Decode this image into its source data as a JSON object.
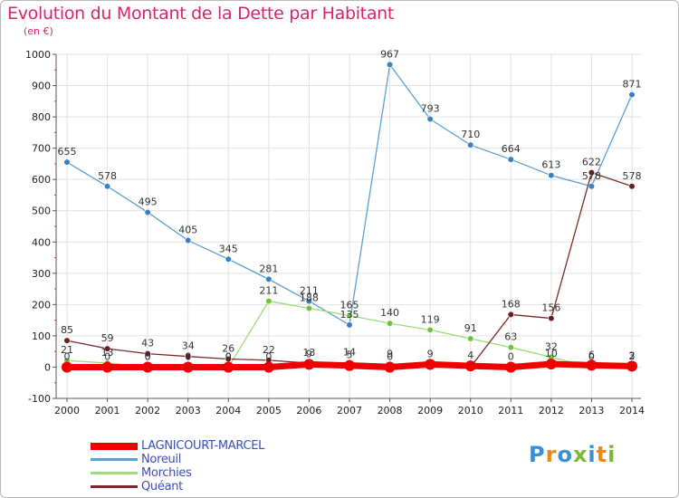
{
  "title": "Evolution du Montant de la Dette par Habitant",
  "unit_label": "(en €)",
  "logo": {
    "text": "Proxiti"
  },
  "chart_data": {
    "type": "line",
    "title": "Evolution du Montant de la Dette par Habitant",
    "subtitle": "(en €)",
    "xlabel": "",
    "ylabel": "",
    "x": [
      2000,
      2001,
      2002,
      2003,
      2004,
      2005,
      2006,
      2007,
      2008,
      2009,
      2010,
      2011,
      2012,
      2013,
      2014
    ],
    "ylim": [
      -100,
      1000
    ],
    "yticks": [
      -100,
      0,
      100,
      200,
      300,
      400,
      500,
      600,
      700,
      800,
      900,
      1000
    ],
    "grid": true,
    "legend_position": "bottom-left",
    "series": [
      {
        "name": "LAGNICOURT-MARCEL",
        "color": "#ee0000",
        "marker": "#ee0000",
        "values": [
          0,
          0,
          0,
          0,
          0,
          0,
          9,
          5,
          0,
          9,
          4,
          0,
          10,
          6,
          3
        ],
        "labels": [
          "0",
          "0",
          "0",
          "0",
          "0",
          "0",
          "9",
          "5",
          "0",
          "9",
          "4",
          "0",
          "10",
          "6",
          "3"
        ]
      },
      {
        "name": "Noreuil",
        "color": "#5ba0d5",
        "marker": "#3a7fc0",
        "values": [
          655,
          578,
          495,
          405,
          345,
          281,
          211,
          135,
          967,
          793,
          710,
          664,
          613,
          578,
          871
        ],
        "labels": [
          "655",
          "578",
          "495",
          "405",
          "345",
          "281",
          "211",
          "135",
          "967",
          "793",
          "710",
          "664",
          "613",
          "578",
          "871"
        ]
      },
      {
        "name": "Morchies",
        "color": "#99dd77",
        "marker": "#6ec440",
        "values": [
          21,
          13,
          0,
          0,
          0,
          211,
          188,
          165,
          140,
          119,
          91,
          63,
          32,
          0,
          2
        ],
        "labels": [
          "21",
          "13",
          "0",
          "0",
          "0",
          "211",
          "188",
          "165",
          "140",
          "119",
          "91",
          "63",
          "32",
          "0",
          "2"
        ]
      },
      {
        "name": "Quéant",
        "color": "#7a2a2a",
        "marker": "#6a1e1e",
        "values": [
          85,
          59,
          43,
          34,
          26,
          22,
          13,
          14,
          9,
          0,
          0,
          168,
          156,
          622,
          578
        ],
        "labels": [
          "85",
          "59",
          "43",
          "34",
          "26",
          "22",
          "13",
          "14",
          "9",
          "",
          "",
          "168",
          "156",
          "622",
          "578"
        ]
      }
    ]
  }
}
